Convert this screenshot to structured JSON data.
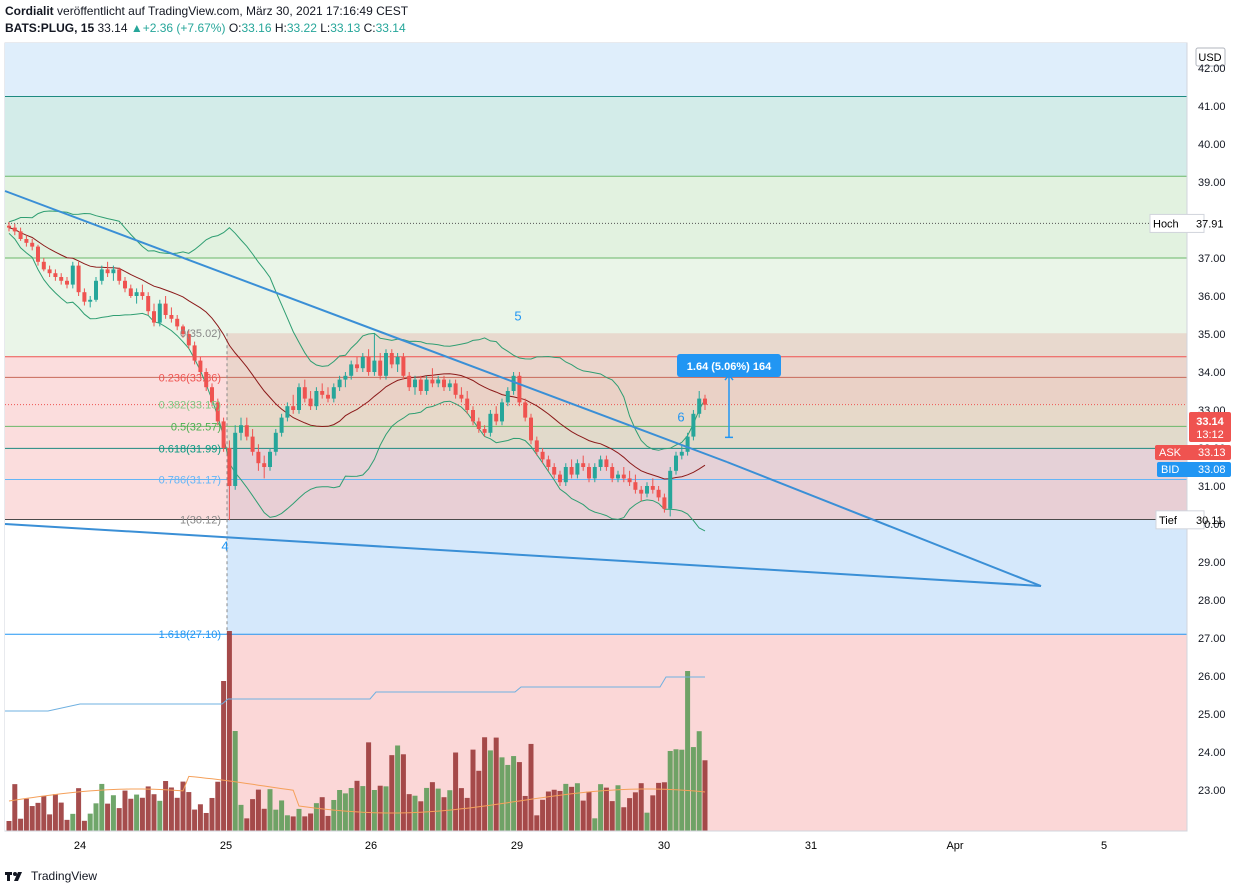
{
  "header": {
    "publisher": "Cordialit",
    "published_text": "veröffentlicht auf TradingView.com, März 30, 2021 17:16:49 CEST",
    "symbol": "BATS:PLUG, 15",
    "last": "33.14",
    "change": "+2.36 (+7.67%)",
    "o_label": "O:",
    "o": "33.16",
    "h_label": "H:",
    "h": "33.22",
    "l_label": "L:",
    "l": "33.13",
    "c_label": "C:",
    "c": "33.14"
  },
  "footer": {
    "brand": "TradingView"
  },
  "colors": {
    "up": "#26a69a",
    "down": "#ef5350",
    "blue": "#2196f3",
    "trend": "#3a8fd6",
    "bb": "#2f9e72",
    "ma": "#8b1a1a",
    "vol_up": "#5f9c5a",
    "vol_down": "#9b3a3a"
  },
  "chart_data": {
    "type": "candlestick",
    "currency": "USD",
    "x_labels": [
      "24",
      "25",
      "26",
      "29",
      "30",
      "31",
      "Apr",
      "5"
    ],
    "y_ticks": [
      "42.00",
      "41.00",
      "40.00",
      "39.00",
      "38.00",
      "37.00",
      "36.00",
      "35.00",
      "34.00",
      "33.00",
      "32.00",
      "31.00",
      "30.00",
      "29.00",
      "28.00",
      "27.00",
      "26.00",
      "25.00",
      "24.00",
      "23.00"
    ],
    "last_price": {
      "label": "33.14",
      "countdown": "13:12"
    },
    "ask": {
      "label": "ASK",
      "value": "33.13"
    },
    "bid": {
      "label": "BID",
      "value": "33.08"
    },
    "high_marker": {
      "label": "Hoch",
      "value": "37.91"
    },
    "low_marker": {
      "label": "Tief",
      "value": "30.11"
    },
    "fib_levels": [
      {
        "label": "0(35.02)",
        "ratio": 0,
        "price": 35.02,
        "color": "#888888"
      },
      {
        "label": "0.236(33.86)",
        "ratio": 0.236,
        "price": 33.86,
        "color": "#ef5350"
      },
      {
        "label": "0.382(33.15)",
        "ratio": 0.382,
        "price": 33.15,
        "color": "#81c784"
      },
      {
        "label": "0.5(32.57)",
        "ratio": 0.5,
        "price": 32.57,
        "color": "#4caf50"
      },
      {
        "label": "0.618(31.99)",
        "ratio": 0.618,
        "price": 31.99,
        "color": "#089981"
      },
      {
        "label": "0.786(31.17)",
        "ratio": 0.786,
        "price": 31.17,
        "color": "#64b5f6"
      },
      {
        "label": "1(30.12)",
        "ratio": 1,
        "price": 30.12,
        "color": "#888888"
      },
      {
        "label": "1.618(27.10)",
        "ratio": 1.618,
        "price": 27.1,
        "color": "#2196f3"
      }
    ],
    "wave_labels": [
      {
        "text": "4",
        "x": 225,
        "price": 29.3
      },
      {
        "text": "5",
        "x": 518,
        "price": 35.35
      },
      {
        "text": "6",
        "x": 681,
        "price": 32.7
      }
    ],
    "measure": {
      "label": "1.64 (5.06%) 164"
    },
    "candles": [
      [
        37.85,
        37.95,
        37.7,
        37.8
      ],
      [
        37.8,
        37.9,
        37.6,
        37.7
      ],
      [
        37.7,
        37.8,
        37.45,
        37.5
      ],
      [
        37.5,
        37.6,
        37.3,
        37.4
      ],
      [
        37.4,
        37.5,
        37.2,
        37.3
      ],
      [
        37.3,
        37.35,
        36.8,
        36.9
      ],
      [
        36.9,
        37.0,
        36.65,
        36.7
      ],
      [
        36.7,
        36.8,
        36.5,
        36.6
      ],
      [
        36.6,
        36.7,
        36.4,
        36.5
      ],
      [
        36.5,
        36.6,
        36.3,
        36.4
      ],
      [
        36.4,
        36.5,
        36.2,
        36.3
      ],
      [
        36.3,
        36.9,
        36.2,
        36.8
      ],
      [
        36.8,
        36.9,
        36.0,
        36.1
      ],
      [
        36.1,
        36.2,
        35.75,
        35.85
      ],
      [
        35.85,
        36.0,
        35.7,
        35.9
      ],
      [
        35.9,
        36.5,
        35.85,
        36.4
      ],
      [
        36.4,
        36.8,
        36.3,
        36.7
      ],
      [
        36.7,
        36.9,
        36.5,
        36.6
      ],
      [
        36.6,
        36.8,
        36.4,
        36.7
      ],
      [
        36.7,
        36.75,
        36.3,
        36.4
      ],
      [
        36.4,
        36.5,
        36.1,
        36.2
      ],
      [
        36.2,
        36.3,
        35.95,
        36.0
      ],
      [
        36.0,
        36.2,
        35.8,
        36.1
      ],
      [
        36.1,
        36.3,
        35.9,
        36.0
      ],
      [
        36.0,
        36.1,
        35.5,
        35.6
      ],
      [
        35.6,
        35.8,
        35.2,
        35.3
      ],
      [
        35.3,
        35.9,
        35.2,
        35.8
      ],
      [
        35.8,
        36.0,
        35.4,
        35.5
      ],
      [
        35.5,
        35.7,
        35.3,
        35.4
      ],
      [
        35.4,
        35.5,
        35.1,
        35.2
      ],
      [
        35.2,
        35.25,
        34.9,
        35.0
      ],
      [
        35.0,
        35.1,
        34.6,
        34.7
      ],
      [
        34.7,
        34.8,
        34.2,
        34.3
      ],
      [
        34.3,
        34.4,
        33.9,
        34.0
      ],
      [
        34.0,
        34.1,
        33.5,
        33.6
      ],
      [
        33.6,
        33.7,
        33.1,
        33.2
      ],
      [
        33.2,
        33.3,
        32.6,
        32.7
      ],
      [
        32.7,
        32.8,
        31.9,
        32.0
      ],
      [
        32.0,
        32.2,
        30.1,
        31.0
      ],
      [
        31.0,
        32.6,
        30.9,
        32.4
      ],
      [
        32.4,
        32.8,
        32.2,
        32.6
      ],
      [
        32.6,
        32.8,
        32.2,
        32.3
      ],
      [
        32.3,
        32.5,
        31.8,
        31.9
      ],
      [
        31.9,
        32.1,
        31.4,
        31.6
      ],
      [
        31.6,
        31.8,
        31.2,
        31.5
      ],
      [
        31.5,
        32.0,
        31.4,
        31.9
      ],
      [
        31.9,
        32.5,
        31.8,
        32.4
      ],
      [
        32.4,
        32.9,
        32.3,
        32.8
      ],
      [
        32.8,
        33.2,
        32.7,
        33.1
      ],
      [
        33.1,
        33.4,
        32.9,
        33.0
      ],
      [
        33.0,
        33.7,
        32.9,
        33.6
      ],
      [
        33.6,
        33.8,
        33.2,
        33.3
      ],
      [
        33.3,
        33.5,
        33.0,
        33.1
      ],
      [
        33.1,
        33.6,
        33.0,
        33.5
      ],
      [
        33.5,
        33.7,
        33.3,
        33.4
      ],
      [
        33.4,
        33.6,
        33.2,
        33.3
      ],
      [
        33.3,
        33.7,
        33.2,
        33.6
      ],
      [
        33.6,
        33.9,
        33.5,
        33.8
      ],
      [
        33.8,
        34.0,
        33.6,
        33.9
      ],
      [
        33.9,
        34.3,
        33.8,
        34.2
      ],
      [
        34.2,
        34.4,
        34.0,
        34.1
      ],
      [
        34.1,
        34.5,
        34.0,
        34.4
      ],
      [
        34.4,
        34.6,
        33.9,
        34.0
      ],
      [
        34.0,
        35.0,
        33.9,
        34.3
      ],
      [
        34.3,
        34.5,
        33.8,
        33.9
      ],
      [
        33.9,
        34.6,
        33.8,
        34.5
      ],
      [
        34.5,
        34.6,
        34.1,
        34.2
      ],
      [
        34.2,
        34.5,
        34.0,
        34.4
      ],
      [
        34.4,
        34.5,
        33.8,
        33.9
      ],
      [
        33.9,
        34.0,
        33.5,
        33.6
      ],
      [
        33.6,
        33.9,
        33.4,
        33.8
      ],
      [
        33.8,
        33.9,
        33.4,
        33.5
      ],
      [
        33.5,
        33.9,
        33.4,
        33.8
      ],
      [
        33.8,
        34.1,
        33.6,
        33.7
      ],
      [
        33.7,
        33.9,
        33.6,
        33.8
      ],
      [
        33.8,
        33.9,
        33.5,
        33.6
      ],
      [
        33.6,
        33.8,
        33.5,
        33.7
      ],
      [
        33.7,
        33.8,
        33.3,
        33.4
      ],
      [
        33.4,
        33.6,
        33.2,
        33.3
      ],
      [
        33.3,
        33.5,
        32.9,
        33.0
      ],
      [
        33.0,
        33.1,
        32.6,
        32.7
      ],
      [
        32.7,
        32.8,
        32.4,
        32.5
      ],
      [
        32.5,
        32.6,
        32.3,
        32.4
      ],
      [
        32.4,
        33.0,
        32.3,
        32.9
      ],
      [
        32.9,
        33.1,
        32.6,
        32.7
      ],
      [
        32.7,
        33.3,
        32.6,
        33.2
      ],
      [
        33.2,
        33.6,
        33.1,
        33.5
      ],
      [
        33.5,
        34.0,
        33.4,
        33.9
      ],
      [
        33.9,
        34.0,
        33.1,
        33.2
      ],
      [
        33.2,
        33.3,
        32.7,
        32.8
      ],
      [
        32.8,
        32.9,
        32.1,
        32.2
      ],
      [
        32.2,
        32.3,
        31.8,
        31.9
      ],
      [
        31.9,
        32.0,
        31.6,
        31.7
      ],
      [
        31.7,
        31.8,
        31.4,
        31.5
      ],
      [
        31.5,
        31.6,
        31.2,
        31.3
      ],
      [
        31.3,
        31.4,
        31.0,
        31.1
      ],
      [
        31.1,
        31.6,
        31.0,
        31.5
      ],
      [
        31.5,
        31.7,
        31.2,
        31.3
      ],
      [
        31.3,
        31.7,
        31.2,
        31.6
      ],
      [
        31.6,
        31.8,
        31.4,
        31.5
      ],
      [
        31.5,
        31.6,
        31.1,
        31.2
      ],
      [
        31.2,
        31.6,
        31.1,
        31.5
      ],
      [
        31.5,
        31.8,
        31.4,
        31.7
      ],
      [
        31.7,
        31.8,
        31.4,
        31.5
      ],
      [
        31.5,
        31.6,
        31.1,
        31.2
      ],
      [
        31.2,
        31.4,
        31.1,
        31.3
      ],
      [
        31.3,
        31.5,
        31.1,
        31.2
      ],
      [
        31.2,
        31.4,
        31.0,
        31.1
      ],
      [
        31.1,
        31.3,
        30.8,
        30.9
      ],
      [
        30.9,
        31.0,
        30.6,
        30.8
      ],
      [
        30.8,
        31.1,
        30.7,
        31.0
      ],
      [
        31.0,
        31.2,
        30.8,
        30.9
      ],
      [
        30.9,
        31.0,
        30.6,
        30.7
      ],
      [
        30.7,
        30.8,
        30.3,
        30.4
      ],
      [
        30.4,
        31.5,
        30.2,
        31.4
      ],
      [
        31.4,
        31.9,
        31.3,
        31.8
      ],
      [
        31.8,
        32.1,
        31.7,
        31.9
      ],
      [
        31.9,
        32.4,
        31.8,
        32.3
      ],
      [
        32.3,
        33.0,
        32.2,
        32.9
      ],
      [
        32.9,
        33.5,
        32.8,
        33.3
      ],
      [
        33.3,
        33.4,
        33.0,
        33.14
      ]
    ],
    "volume_note": "relative volume bars, separate scale"
  }
}
